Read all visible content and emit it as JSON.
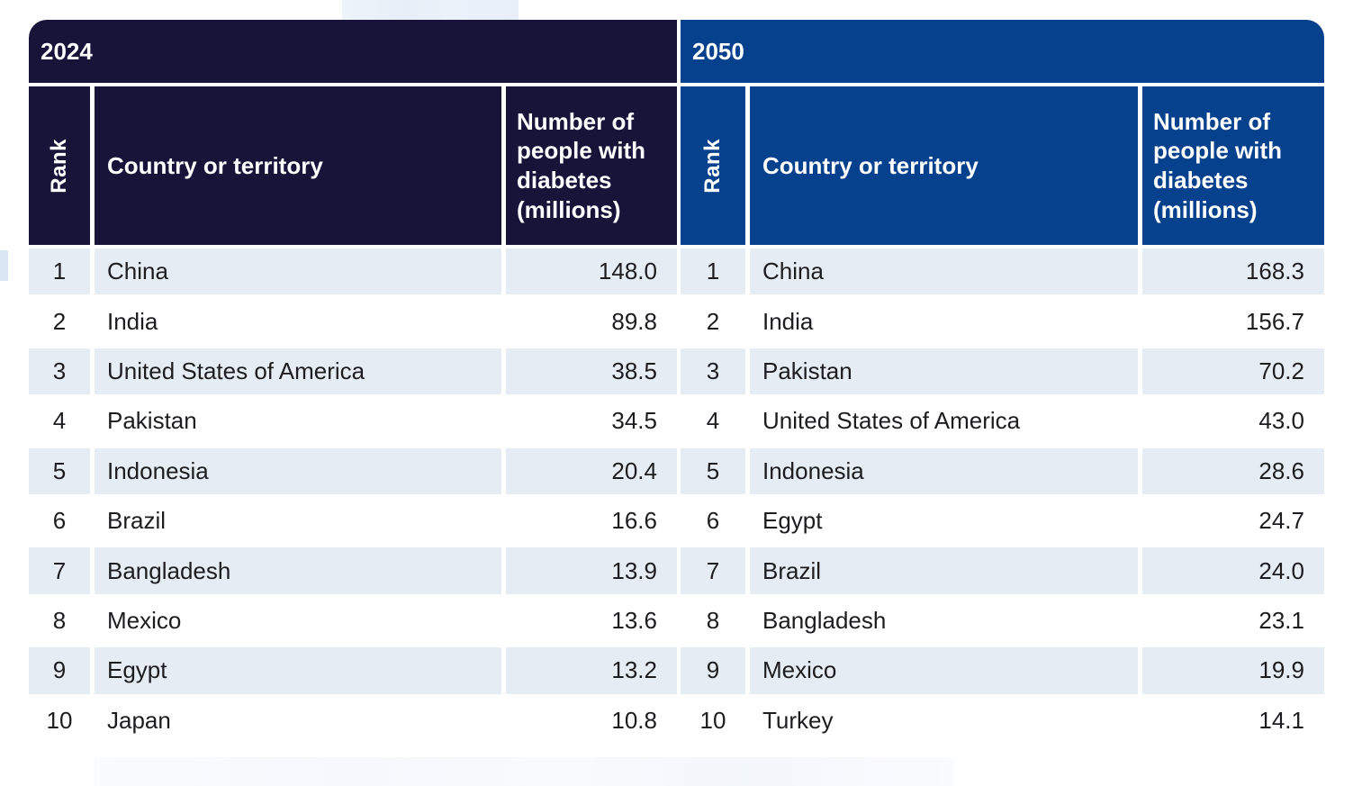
{
  "chart_data": [
    {
      "type": "table",
      "title": "2024",
      "columns": [
        "Rank",
        "Country or territory",
        "Number of people with diabetes (millions)"
      ],
      "rows": [
        {
          "rank": "1",
          "country": "China",
          "value": "148.0"
        },
        {
          "rank": "2",
          "country": "India",
          "value": "89.8"
        },
        {
          "rank": "3",
          "country": "United States of America",
          "value": "38.5"
        },
        {
          "rank": "4",
          "country": "Pakistan",
          "value": "34.5"
        },
        {
          "rank": "5",
          "country": "Indonesia",
          "value": "20.4"
        },
        {
          "rank": "6",
          "country": "Brazil",
          "value": "16.6"
        },
        {
          "rank": "7",
          "country": "Bangladesh",
          "value": "13.9"
        },
        {
          "rank": "8",
          "country": "Mexico",
          "value": "13.6"
        },
        {
          "rank": "9",
          "country": "Egypt",
          "value": "13.2"
        },
        {
          "rank": "10",
          "country": "Japan",
          "value": "10.8"
        }
      ]
    },
    {
      "type": "table",
      "title": "2050",
      "columns": [
        "Rank",
        "Country or territory",
        "Number of people with diabetes (millions)"
      ],
      "rows": [
        {
          "rank": "1",
          "country": "China",
          "value": "168.3"
        },
        {
          "rank": "2",
          "country": "India",
          "value": "156.7"
        },
        {
          "rank": "3",
          "country": "Pakistan",
          "value": "70.2"
        },
        {
          "rank": "4",
          "country": "United States of America",
          "value": "43.0"
        },
        {
          "rank": "5",
          "country": "Indonesia",
          "value": "28.6"
        },
        {
          "rank": "6",
          "country": "Egypt",
          "value": "24.7"
        },
        {
          "rank": "7",
          "country": "Brazil",
          "value": "24.0"
        },
        {
          "rank": "8",
          "country": "Bangladesh",
          "value": "23.1"
        },
        {
          "rank": "9",
          "country": "Mexico",
          "value": "19.9"
        },
        {
          "rank": "10",
          "country": "Turkey",
          "value": "14.1"
        }
      ]
    }
  ],
  "colors": {
    "header_2024": "#181339",
    "header_2050": "#05418D",
    "row_alternate": "#E6ECF4",
    "row_default": "#FFFFFF",
    "header_text": "#FFFFFF",
    "body_text": "#1D1D20"
  }
}
